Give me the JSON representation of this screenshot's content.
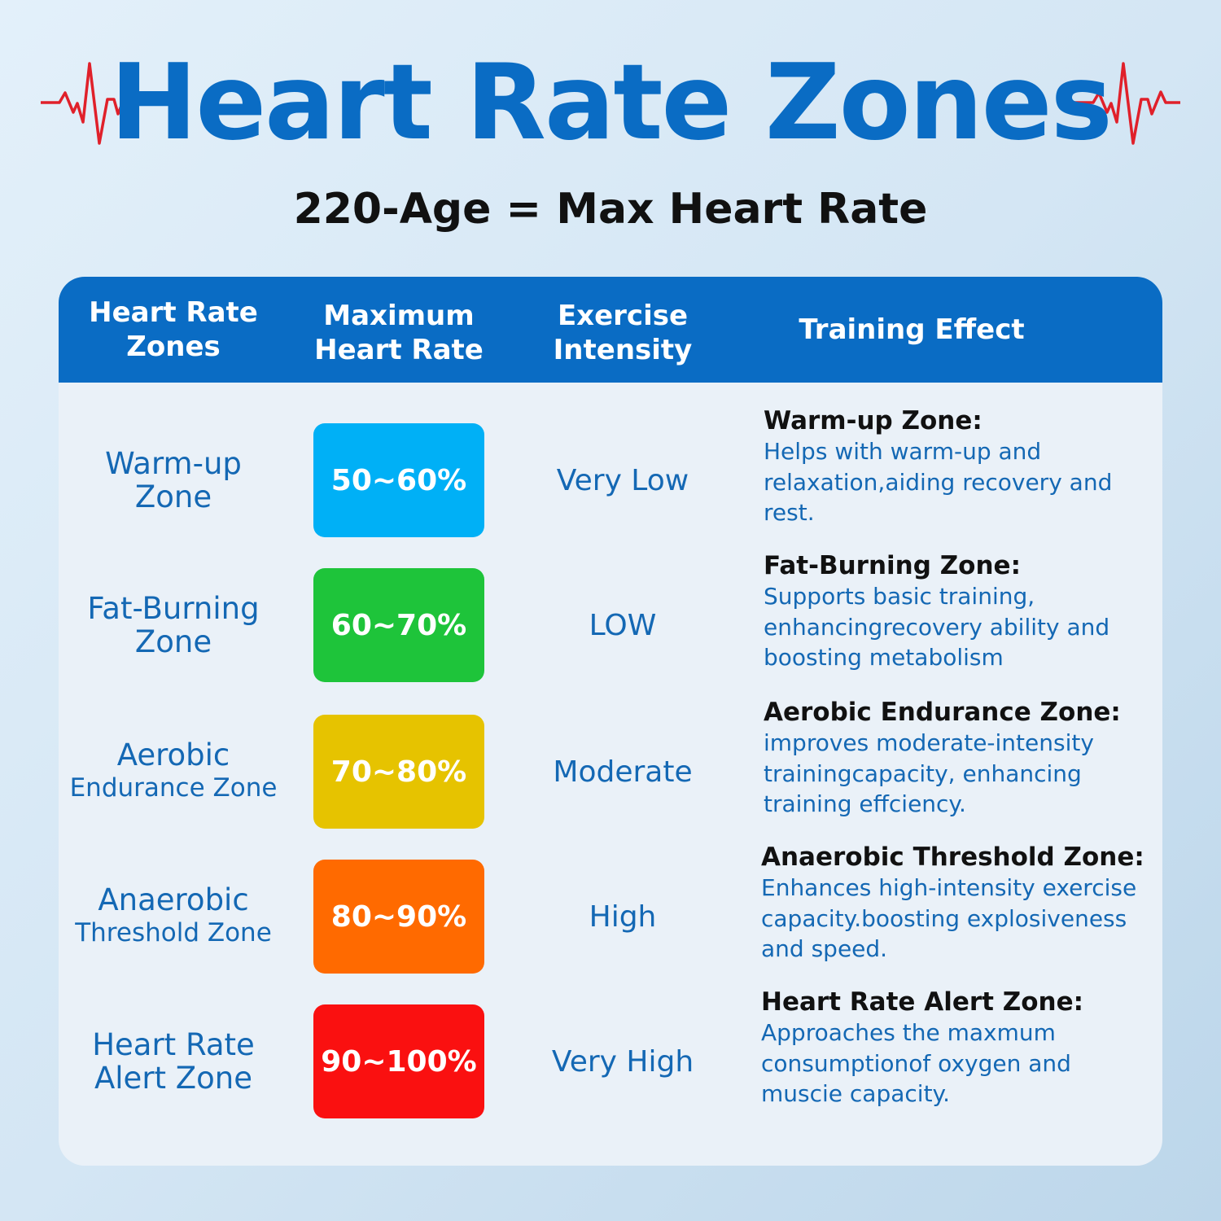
{
  "title": "Heart Rate Zones",
  "subtitle": "220-Age = Max Heart Rate",
  "icons": {
    "decoration": "heartbeat-ecg-icon",
    "color": "#e0202a"
  },
  "table": {
    "headers": [
      "Heart Rate\nZones",
      "Maximum\nHeart Rate",
      "Exercise\nIntensity",
      "Training Effect"
    ],
    "rows": [
      {
        "zone_line1": "Warm-up",
        "zone_line2": "Zone",
        "range": "50~60%",
        "color": "#00b0f6",
        "intensity": "Very Low",
        "effect_title": "Warm-up Zone:",
        "effect_text": "Helps with warm-up and relaxation,aiding recovery and rest."
      },
      {
        "zone_line1": "Fat-Burning",
        "zone_line2": "Zone",
        "range": "60~70%",
        "color": "#1ec43a",
        "intensity": "LOW",
        "effect_title": "Fat-Burning Zone:",
        "effect_text": "Supports basic training, enhancingrecovery ability and boosting metabolism"
      },
      {
        "zone_line1": "Aerobic",
        "zone_line2": "Endurance Zone",
        "range": "70~80%",
        "color": "#e6c300",
        "intensity": "Moderate",
        "effect_title": "Aerobic Endurance Zone:",
        "effect_text": "improves moderate-intensity trainingcapacity, enhancing training effciency."
      },
      {
        "zone_line1": "Anaerobic",
        "zone_line2": "Threshold Zone",
        "range": "80~90%",
        "color": "#ff6a00",
        "intensity": "High",
        "effect_title": "Anaerobic Threshold Zone:",
        "effect_text": "Enhances high-intensity exercise capacity.boosting explosiveness and speed."
      },
      {
        "zone_line1": "Heart Rate",
        "zone_line2": "Alert Zone",
        "range": "90~100%",
        "color": "#fa1010",
        "intensity": "Very High",
        "effect_title": "Heart Rate Alert Zone:",
        "effect_text": "Approaches the maxmum consumptionof oxygen and muscie capacity."
      }
    ]
  }
}
